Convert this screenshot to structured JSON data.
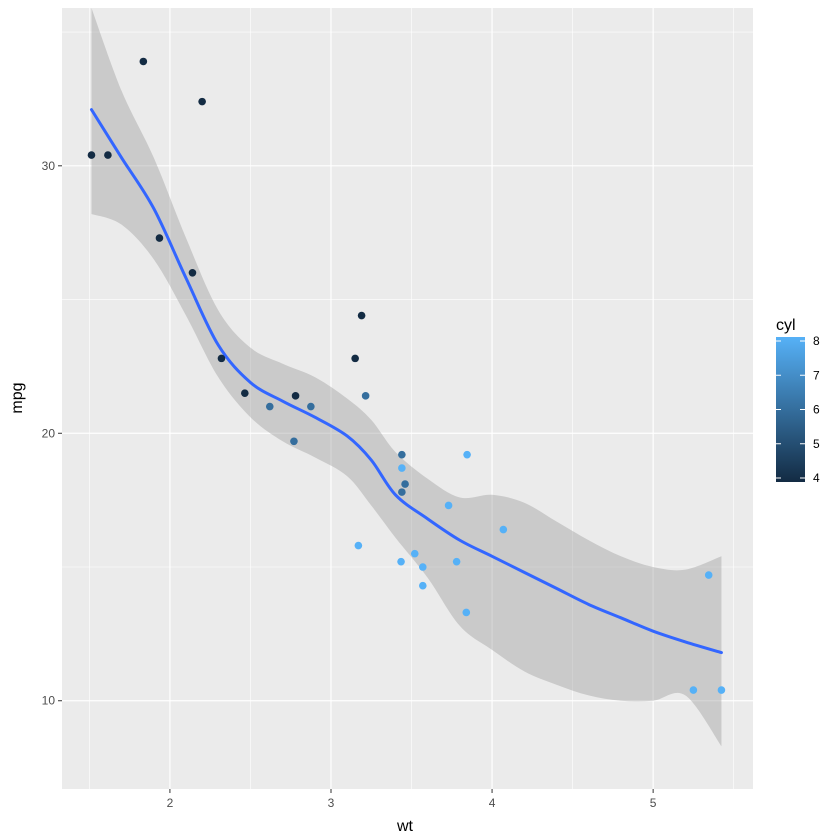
{
  "chart_data": {
    "type": "scatter",
    "title": "",
    "xlabel": "wt",
    "ylabel": "mpg",
    "xlim": [
      1.33,
      5.62
    ],
    "ylim": [
      6.7,
      35.9
    ],
    "x_ticks": [
      2,
      3,
      4,
      5
    ],
    "y_ticks": [
      10,
      20,
      30
    ],
    "x_tick_labels": [
      "2",
      "3",
      "4",
      "5"
    ],
    "y_tick_labels": [
      "10",
      "20",
      "30"
    ],
    "grid": true,
    "points": [
      {
        "x": 2.62,
        "y": 21.0,
        "cyl": 6
      },
      {
        "x": 2.875,
        "y": 21.0,
        "cyl": 6
      },
      {
        "x": 2.32,
        "y": 22.8,
        "cyl": 4
      },
      {
        "x": 3.215,
        "y": 21.4,
        "cyl": 6
      },
      {
        "x": 3.44,
        "y": 18.7,
        "cyl": 8
      },
      {
        "x": 3.46,
        "y": 18.1,
        "cyl": 6
      },
      {
        "x": 3.57,
        "y": 14.3,
        "cyl": 8
      },
      {
        "x": 3.19,
        "y": 24.4,
        "cyl": 4
      },
      {
        "x": 3.15,
        "y": 22.8,
        "cyl": 4
      },
      {
        "x": 3.44,
        "y": 19.2,
        "cyl": 6
      },
      {
        "x": 3.44,
        "y": 17.8,
        "cyl": 6
      },
      {
        "x": 4.07,
        "y": 16.4,
        "cyl": 8
      },
      {
        "x": 3.73,
        "y": 17.3,
        "cyl": 8
      },
      {
        "x": 3.78,
        "y": 15.2,
        "cyl": 8
      },
      {
        "x": 5.25,
        "y": 10.4,
        "cyl": 8
      },
      {
        "x": 5.424,
        "y": 10.4,
        "cyl": 8
      },
      {
        "x": 5.345,
        "y": 14.7,
        "cyl": 8
      },
      {
        "x": 2.2,
        "y": 32.4,
        "cyl": 4
      },
      {
        "x": 1.615,
        "y": 30.4,
        "cyl": 4
      },
      {
        "x": 1.835,
        "y": 33.9,
        "cyl": 4
      },
      {
        "x": 2.465,
        "y": 21.5,
        "cyl": 4
      },
      {
        "x": 3.52,
        "y": 15.5,
        "cyl": 8
      },
      {
        "x": 3.435,
        "y": 15.2,
        "cyl": 8
      },
      {
        "x": 3.84,
        "y": 13.3,
        "cyl": 8
      },
      {
        "x": 3.845,
        "y": 19.2,
        "cyl": 8
      },
      {
        "x": 1.935,
        "y": 27.3,
        "cyl": 4
      },
      {
        "x": 2.14,
        "y": 26.0,
        "cyl": 4
      },
      {
        "x": 1.513,
        "y": 30.4,
        "cyl": 4
      },
      {
        "x": 3.17,
        "y": 15.8,
        "cyl": 8
      },
      {
        "x": 2.77,
        "y": 19.7,
        "cyl": 6
      },
      {
        "x": 3.57,
        "y": 15.0,
        "cyl": 8
      },
      {
        "x": 2.78,
        "y": 21.4,
        "cyl": 4
      }
    ],
    "smooth": {
      "method": "loess",
      "x": [
        1.513,
        1.7,
        1.9,
        2.1,
        2.3,
        2.5,
        2.7,
        2.9,
        3.1,
        3.25,
        3.4,
        3.6,
        3.8,
        4.0,
        4.2,
        4.4,
        4.6,
        4.8,
        5.0,
        5.2,
        5.424
      ],
      "y": [
        32.1,
        30.3,
        28.4,
        25.8,
        23.3,
        21.9,
        21.2,
        20.6,
        19.9,
        19.0,
        17.7,
        16.8,
        16.0,
        15.4,
        14.8,
        14.2,
        13.6,
        13.1,
        12.6,
        12.2,
        11.8
      ],
      "lower": [
        28.2,
        27.8,
        26.5,
        24.4,
        22.1,
        20.6,
        19.7,
        19.1,
        18.4,
        17.3,
        16.1,
        14.6,
        12.8,
        11.9,
        11.1,
        10.6,
        10.2,
        10.0,
        10.0,
        10.2,
        8.3
      ],
      "upper": [
        35.9,
        32.8,
        30.3,
        27.3,
        24.6,
        23.2,
        22.6,
        22.1,
        21.3,
        20.5,
        19.3,
        18.3,
        17.6,
        17.7,
        17.4,
        16.7,
        16.0,
        15.4,
        15.0,
        14.9,
        15.4
      ],
      "line_color": "#3366FF",
      "band_color": "#999999"
    },
    "legend": {
      "title": "cyl",
      "type": "colorbar",
      "placement": "right",
      "range": [
        4,
        8
      ],
      "ticks": [
        4,
        5,
        6,
        7,
        8
      ],
      "tick_labels": [
        "4",
        "5",
        "6",
        "7",
        "8"
      ],
      "low_color": "#132B43",
      "high_color": "#56B1F7"
    },
    "panel_background": "#EBEBEB",
    "grid_color": "#FFFFFF"
  }
}
